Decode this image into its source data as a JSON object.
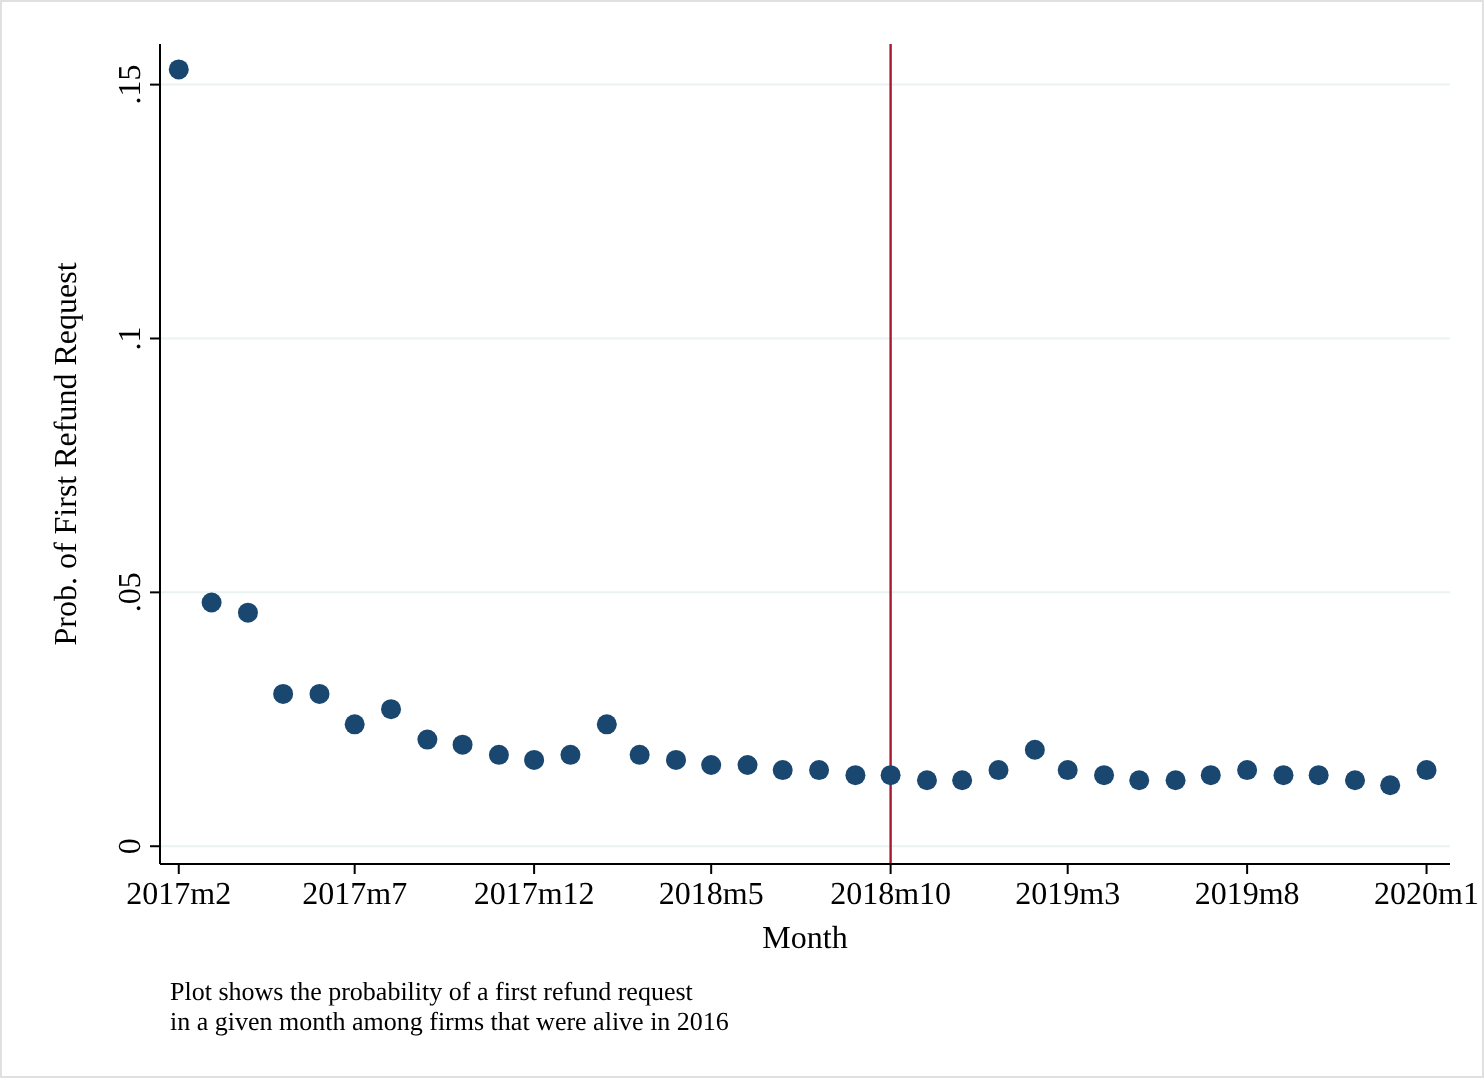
{
  "chart_data": {
    "type": "scatter",
    "xlabel": "Month",
    "ylabel": "Prob. of First Refund Request",
    "x": [
      "2017-02",
      "2017-03",
      "2017-04",
      "2017-05",
      "2017-06",
      "2017-07",
      "2017-08",
      "2017-09",
      "2017-10",
      "2017-11",
      "2017-12",
      "2018-01",
      "2018-02",
      "2018-03",
      "2018-04",
      "2018-05",
      "2018-06",
      "2018-07",
      "2018-08",
      "2018-09",
      "2018-10",
      "2018-11",
      "2018-12",
      "2019-01",
      "2019-02",
      "2019-03",
      "2019-04",
      "2019-05",
      "2019-06",
      "2019-07",
      "2019-08",
      "2019-09",
      "2019-10",
      "2019-11",
      "2019-12",
      "2020-01"
    ],
    "series": [
      {
        "color": "#1a476f",
        "values": [
          0.153,
          0.048,
          0.046,
          0.03,
          0.03,
          0.024,
          0.027,
          0.021,
          0.02,
          0.018,
          0.017,
          0.018,
          0.024,
          0.018,
          0.017,
          0.016,
          0.016,
          0.015,
          0.015,
          0.014,
          0.014,
          0.013,
          0.013,
          0.015,
          0.019,
          0.015,
          0.014,
          0.013,
          0.013,
          0.014,
          0.015,
          0.014,
          0.014,
          0.013,
          0.012,
          0.015
        ]
      }
    ],
    "marker": "circle",
    "xlim": [
      "2017-01-16",
      "2020-01-21"
    ],
    "xticks": [
      {
        "value": "2017-02",
        "label": "2017m2"
      },
      {
        "value": "2017-07",
        "label": "2017m7"
      },
      {
        "value": "2017-12",
        "label": "2017m12"
      },
      {
        "value": "2018-05",
        "label": "2018m5"
      },
      {
        "value": "2018-10",
        "label": "2018m10"
      },
      {
        "value": "2019-03",
        "label": "2019m3"
      },
      {
        "value": "2019-08",
        "label": "2019m8"
      },
      {
        "value": "2020-01",
        "label": "2020m1"
      }
    ],
    "ylim": [
      -0.0035,
      0.158
    ],
    "yticks": [
      {
        "value": 0,
        "label": "0"
      },
      {
        "value": 0.05,
        "label": ".05"
      },
      {
        "value": 0.1,
        "label": ".1"
      },
      {
        "value": 0.15,
        "label": ".15"
      }
    ],
    "grid": "y",
    "ref_lines": [
      {
        "axis": "x",
        "value": "2018-10",
        "color": "#a6192e"
      }
    ],
    "annotations": [
      "Plot shows the probability of a first refund request",
      "in a given month among firms that were alive in 2016"
    ]
  }
}
